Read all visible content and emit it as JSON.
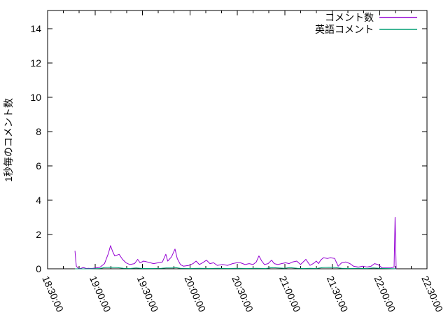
{
  "chart_data": {
    "type": "line",
    "title": "",
    "xlabel": "",
    "ylabel": "1秒毎のコメント数",
    "grid": false,
    "legend_position": "top-right-inside",
    "background_color": "#ffffff",
    "border_color": "#000000",
    "x_axis": {
      "start_time": "18:30:00",
      "end_time": "22:30:00",
      "total_minutes": 240,
      "major_tick_interval_minutes": 30,
      "minor_tick_interval_minutes": 10,
      "tick_labels": [
        "18:30:00",
        "19:00:00",
        "19:30:00",
        "20:00:00",
        "20:30:00",
        "21:00:00",
        "21:30:00",
        "22:00:00",
        "22:30:00"
      ],
      "tick_label_rotation_deg": 66
    },
    "y_axis": {
      "ticks": [
        0,
        2,
        4,
        6,
        8,
        10,
        12,
        14
      ],
      "range": [
        0,
        15.06
      ]
    },
    "legend": [
      {
        "label": "コメント数",
        "color": "#9400d3"
      },
      {
        "label": "英語コメント",
        "color": "#009e73"
      }
    ],
    "series": [
      {
        "name": "コメント数",
        "color": "#9400d3",
        "points_minutes_value": [
          [
            17.3,
            1.05
          ],
          [
            17.8,
            0.5
          ],
          [
            18.2,
            0.15
          ],
          [
            19.5,
            0.02
          ],
          [
            21,
            0.02
          ],
          [
            22.3,
            0.07
          ],
          [
            23.5,
            0.05
          ],
          [
            24.5,
            0.02
          ],
          [
            26,
            0.03
          ],
          [
            28,
            0.02
          ],
          [
            30.5,
            0.05
          ],
          [
            33,
            0.08
          ],
          [
            36,
            0.3
          ],
          [
            38.5,
            0.9
          ],
          [
            39.8,
            1.35
          ],
          [
            41.2,
            1.0
          ],
          [
            42.5,
            0.75
          ],
          [
            44,
            0.8
          ],
          [
            45.2,
            0.85
          ],
          [
            47.4,
            0.55
          ],
          [
            49.6,
            0.35
          ],
          [
            52,
            0.25
          ],
          [
            55,
            0.3
          ],
          [
            57,
            0.55
          ],
          [
            58.5,
            0.35
          ],
          [
            60.7,
            0.45
          ],
          [
            63,
            0.4
          ],
          [
            65,
            0.35
          ],
          [
            67,
            0.3
          ],
          [
            70,
            0.35
          ],
          [
            72.6,
            0.4
          ],
          [
            74.8,
            0.85
          ],
          [
            76,
            0.45
          ],
          [
            78.4,
            0.7
          ],
          [
            80.6,
            1.15
          ],
          [
            82,
            0.6
          ],
          [
            84,
            0.25
          ],
          [
            86,
            0.15
          ],
          [
            89.4,
            0.2
          ],
          [
            92,
            0.3
          ],
          [
            93.9,
            0.45
          ],
          [
            96,
            0.25
          ],
          [
            98,
            0.35
          ],
          [
            100.5,
            0.5
          ],
          [
            102.7,
            0.3
          ],
          [
            105,
            0.35
          ],
          [
            107.3,
            0.2
          ],
          [
            110.7,
            0.25
          ],
          [
            113.8,
            0.2
          ],
          [
            117,
            0.3
          ],
          [
            119.6,
            0.35
          ],
          [
            122,
            0.35
          ],
          [
            124.9,
            0.25
          ],
          [
            127.5,
            0.3
          ],
          [
            130,
            0.25
          ],
          [
            132,
            0.4
          ],
          [
            133.7,
            0.75
          ],
          [
            135.5,
            0.45
          ],
          [
            137.2,
            0.25
          ],
          [
            139.5,
            0.3
          ],
          [
            141.7,
            0.5
          ],
          [
            143.4,
            0.3
          ],
          [
            145.7,
            0.25
          ],
          [
            148,
            0.3
          ],
          [
            150.5,
            0.35
          ],
          [
            152.8,
            0.3
          ],
          [
            155,
            0.4
          ],
          [
            157.6,
            0.45
          ],
          [
            160,
            0.25
          ],
          [
            163.4,
            0.55
          ],
          [
            166,
            0.2
          ],
          [
            168,
            0.3
          ],
          [
            170,
            0.45
          ],
          [
            171.4,
            0.3
          ],
          [
            172.7,
            0.5
          ],
          [
            174.5,
            0.65
          ],
          [
            177,
            0.6
          ],
          [
            178.9,
            0.65
          ],
          [
            181.6,
            0.6
          ],
          [
            183.8,
            0.15
          ],
          [
            186,
            0.35
          ],
          [
            188.6,
            0.4
          ],
          [
            191.3,
            0.3
          ],
          [
            193.5,
            0.15
          ],
          [
            196.6,
            0.1
          ],
          [
            199.3,
            0.15
          ],
          [
            202,
            0.1
          ],
          [
            204.6,
            0.15
          ],
          [
            206.8,
            0.3
          ],
          [
            209,
            0.25
          ],
          [
            211.7,
            0.05
          ],
          [
            214.3,
            0.05
          ],
          [
            217,
            0.05
          ],
          [
            219.2,
            0.1
          ],
          [
            219.8,
            3.0
          ],
          [
            220.5,
            0.0
          ]
        ]
      },
      {
        "name": "英語コメント",
        "color": "#009e73",
        "points_minutes_value": [
          [
            17.3,
            0.0
          ],
          [
            25,
            0.0
          ],
          [
            30,
            0.01
          ],
          [
            33,
            0.02
          ],
          [
            36,
            0.07
          ],
          [
            40,
            0.08
          ],
          [
            44,
            0.07
          ],
          [
            48,
            0.03
          ],
          [
            52,
            0.02
          ],
          [
            56,
            0.05
          ],
          [
            60,
            0.02
          ],
          [
            66,
            0.02
          ],
          [
            72,
            0.03
          ],
          [
            75,
            0.05
          ],
          [
            79,
            0.05
          ],
          [
            81,
            0.07
          ],
          [
            84,
            0.03
          ],
          [
            90,
            0.02
          ],
          [
            96,
            0.03
          ],
          [
            102,
            0.02
          ],
          [
            108,
            0.03
          ],
          [
            114,
            0.02
          ],
          [
            120,
            0.03
          ],
          [
            126,
            0.02
          ],
          [
            132,
            0.03
          ],
          [
            138,
            0.02
          ],
          [
            142,
            0.07
          ],
          [
            146,
            0.05
          ],
          [
            150,
            0.03
          ],
          [
            153,
            0.07
          ],
          [
            158,
            0.03
          ],
          [
            162,
            0.02
          ],
          [
            166,
            0.03
          ],
          [
            170,
            0.02
          ],
          [
            174,
            0.07
          ],
          [
            178,
            0.08
          ],
          [
            182,
            0.07
          ],
          [
            186,
            0.03
          ],
          [
            190,
            0.02
          ],
          [
            196,
            0.03
          ],
          [
            202,
            0.02
          ],
          [
            206,
            0.05
          ],
          [
            210,
            0.03
          ],
          [
            214,
            0.02
          ],
          [
            218,
            0.01
          ],
          [
            220.5,
            0.0
          ]
        ]
      }
    ]
  }
}
